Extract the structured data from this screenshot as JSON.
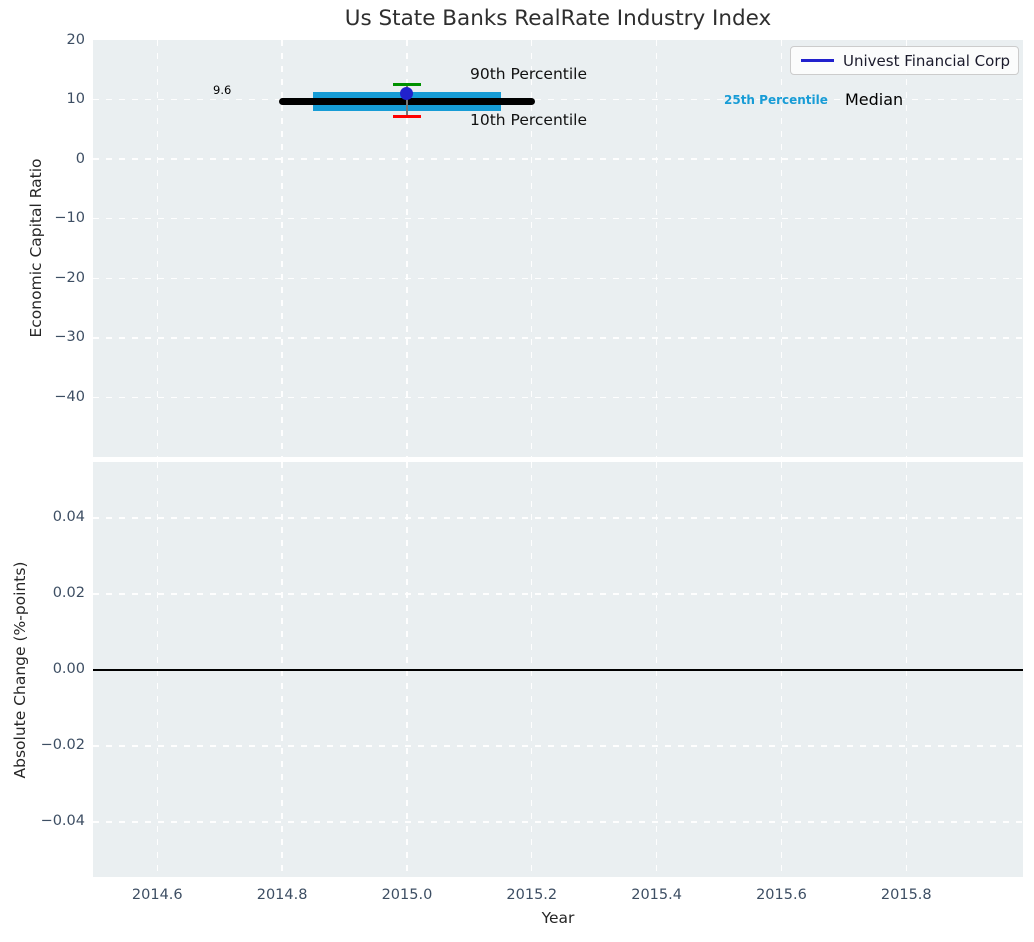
{
  "title": "Us State Banks RealRate Industry Index",
  "legend": {
    "label": "Univest Financial Corp",
    "line_color": "#2121cd"
  },
  "colors": {
    "plot_bg": "#eaeff1",
    "grid": "#ffffff",
    "tick": "#3d4e63",
    "axis_label": "#262626",
    "title": "#2e2e2e",
    "band": "#169cd6",
    "median_line": "#000000",
    "point": "#2121cd",
    "err_cap_high": "#009100",
    "err_cap_low": "#ff0000",
    "err_line": "#777777",
    "zero_line": "#000000",
    "percentile25_text": "#189cd6"
  },
  "chart_data": [
    {
      "type": "scatter",
      "panel": "top",
      "title": "Us State Banks RealRate Industry Index",
      "ylabel": "Economic Capital Ratio",
      "ylim": [
        -50,
        20
      ],
      "xlim": [
        2014.497,
        2015.987
      ],
      "grid": true,
      "legend_position": "upper right",
      "yticks": [
        {
          "v": 20,
          "label": "20"
        },
        {
          "v": 10,
          "label": "10"
        },
        {
          "v": 0,
          "label": "0"
        },
        {
          "v": -10,
          "label": "−10"
        },
        {
          "v": -20,
          "label": "−20"
        },
        {
          "v": -30,
          "label": "−30"
        },
        {
          "v": -40,
          "label": "−40"
        }
      ],
      "series": [
        {
          "name": "25th-75th Percentile Band",
          "type": "band",
          "x_start": 2014.85,
          "x_end": 2015.15,
          "y_low": 8.0,
          "y_high": 11.3,
          "color": "#169cd6"
        },
        {
          "name": "Median",
          "type": "segment",
          "y": 9.6,
          "x_start": 2014.8,
          "x_end": 2015.2,
          "color": "#000000",
          "value_label": "9.6"
        },
        {
          "name": "Univest Financial Corp",
          "type": "point_with_errorbars",
          "x": 2015.0,
          "y": 11.0,
          "err_high": 12.6,
          "err_low": 7.2,
          "color": "#2121cd",
          "cap_high_color": "#009100",
          "cap_low_color": "#ff0000"
        }
      ],
      "annotations": [
        {
          "text": "90th Percentile",
          "color": "#111111"
        },
        {
          "text": "10th Percentile",
          "color": "#111111"
        },
        {
          "text": "25th Percentile",
          "color": "#189cd6"
        },
        {
          "text": "Median",
          "color": "#000000"
        },
        {
          "text": "9.6",
          "color": "#000000"
        }
      ]
    },
    {
      "type": "line",
      "panel": "bottom",
      "ylabel": "Absolute Change (%-points)",
      "xlabel": "Year",
      "ylim": [
        -0.0545,
        0.0547
      ],
      "xlim": [
        2014.497,
        2015.987
      ],
      "grid": true,
      "zero_line_y": 0.0,
      "yticks": [
        {
          "v": 0.04,
          "label": "0.04"
        },
        {
          "v": 0.02,
          "label": "0.02"
        },
        {
          "v": 0,
          "label": "0.00"
        },
        {
          "v": -0.02,
          "label": "−0.02"
        },
        {
          "v": -0.04,
          "label": "−0.04"
        }
      ],
      "series": []
    }
  ],
  "xticks": [
    {
      "v": 2014.6,
      "label": "2014.6"
    },
    {
      "v": 2014.8,
      "label": "2014.8"
    },
    {
      "v": 2015.0,
      "label": "2015.0"
    },
    {
      "v": 2015.2,
      "label": "2015.2"
    },
    {
      "v": 2015.4,
      "label": "2015.4"
    },
    {
      "v": 2015.6,
      "label": "2015.6"
    },
    {
      "v": 2015.8,
      "label": "2015.8"
    }
  ]
}
